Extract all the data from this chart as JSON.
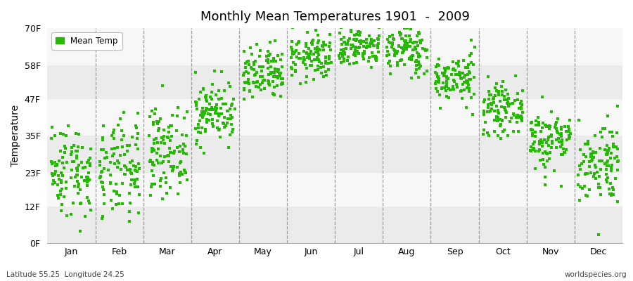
{
  "title": "Monthly Mean Temperatures 1901  -  2009",
  "ylabel": "Temperature",
  "xlabel_bottom": "Latitude 55.25  Longitude 24.25",
  "watermark": "worldspecies.org",
  "dot_color": "#22bb00",
  "dot_size": 5,
  "plot_bg_colors": [
    "#ebebeb",
    "#f7f7f7"
  ],
  "months": [
    "Jan",
    "Feb",
    "Mar",
    "Apr",
    "May",
    "Jun",
    "Jul",
    "Aug",
    "Sep",
    "Oct",
    "Nov",
    "Dec"
  ],
  "ytick_labels": [
    "0F",
    "12F",
    "23F",
    "35F",
    "47F",
    "58F",
    "70F"
  ],
  "ytick_values": [
    0,
    12,
    23,
    35,
    47,
    58,
    70
  ],
  "ylim": [
    0,
    70
  ],
  "years": 109,
  "monthly_mean_C": [
    -4.5,
    -4.8,
    -1.0,
    6.0,
    12.5,
    16.0,
    18.0,
    17.2,
    12.0,
    6.5,
    1.0,
    -3.0
  ],
  "monthly_std_C": [
    4.2,
    4.5,
    3.8,
    2.8,
    2.5,
    2.2,
    2.0,
    2.2,
    2.2,
    2.2,
    2.8,
    3.8
  ]
}
